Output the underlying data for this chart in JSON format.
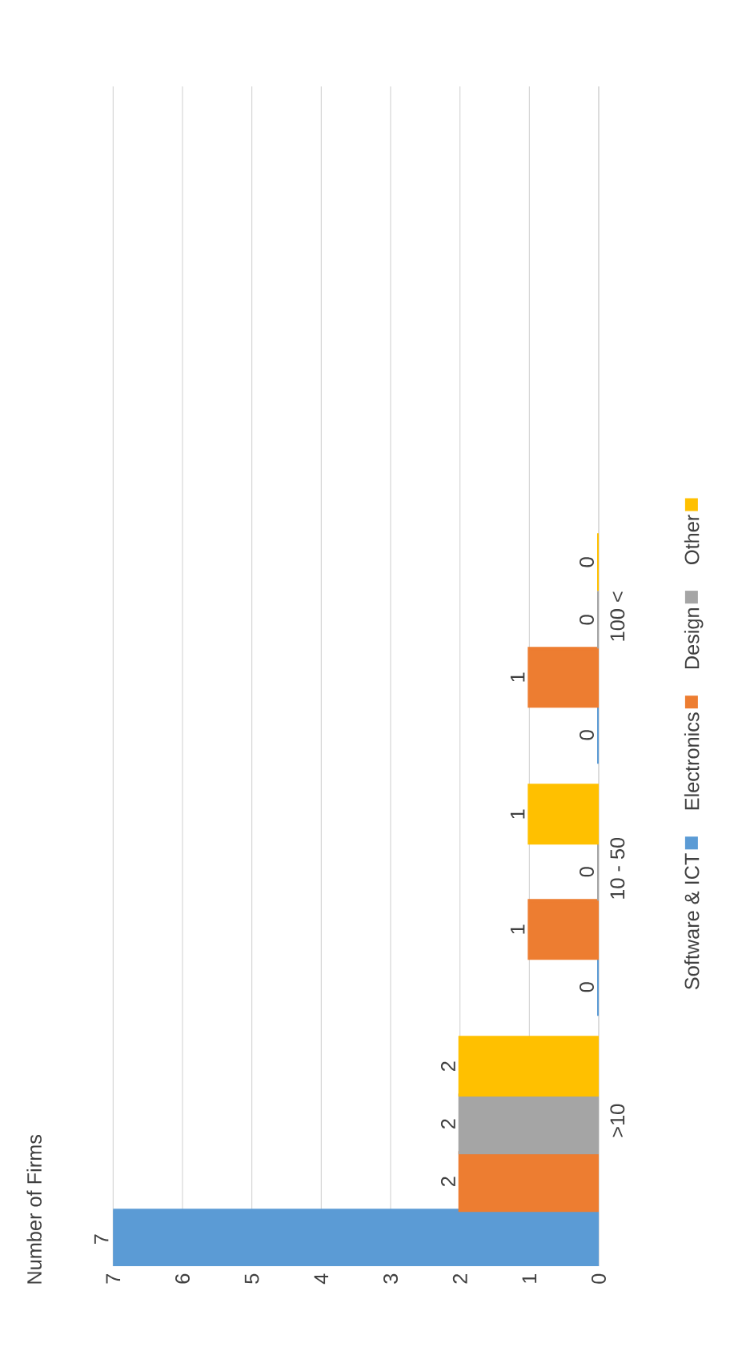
{
  "chart_data": {
    "type": "bar",
    "orientation": "horizontal",
    "annotations": [
      "Number of Firms"
    ],
    "categories": [
      "100 <",
      "10 - 50",
      ">10"
    ],
    "series": [
      {
        "name": "Software & ICT",
        "color": "#5b9bd5",
        "values": [
          0,
          0,
          7
        ]
      },
      {
        "name": "Electronics",
        "color": "#ed7d31",
        "values": [
          1,
          1,
          2
        ]
      },
      {
        "name": "Design",
        "color": "#a5a5a5",
        "values": [
          0,
          0,
          2
        ]
      },
      {
        "name": "Other",
        "color": "#ffc000",
        "values": [
          0,
          1,
          2
        ]
      }
    ],
    "xlim": [
      7,
      0
    ],
    "xticks": [
      0,
      1,
      2,
      3,
      4,
      5,
      6,
      7
    ],
    "grid": "x",
    "legend": "right",
    "data_labels": true
  }
}
